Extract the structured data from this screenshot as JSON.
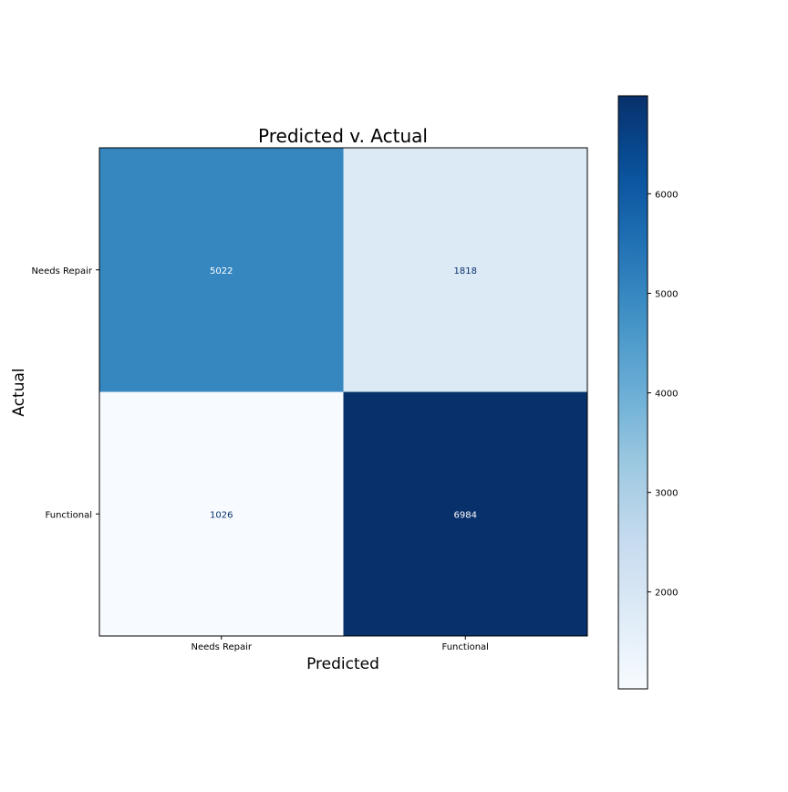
{
  "chart_data": {
    "type": "heatmap",
    "title": "Predicted v. Actual",
    "xlabel": "Predicted",
    "ylabel": "Actual",
    "x_categories": [
      "Needs Repair",
      "Functional"
    ],
    "y_categories": [
      "Needs Repair",
      "Functional"
    ],
    "values": [
      [
        5022,
        1818
      ],
      [
        1026,
        6984
      ]
    ],
    "colormap": "Blues",
    "color_range": [
      1026,
      6984
    ],
    "colorbar_ticks": [
      2000,
      3000,
      4000,
      5000,
      6000
    ],
    "colorbar_tick_labels": [
      "2000",
      "3000",
      "4000",
      "5000",
      "6000"
    ],
    "grid": false,
    "colorbar_position": "right"
  }
}
